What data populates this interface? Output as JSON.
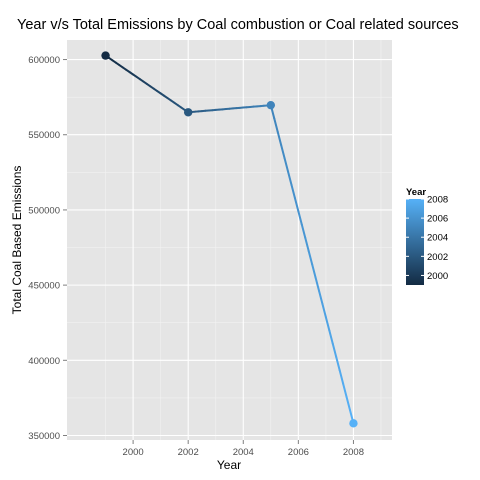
{
  "chart_data": {
    "type": "line",
    "title": "Year v/s Total Emissions by Coal combustion or Coal related sources",
    "xlabel": "Year",
    "ylabel": "Total Coal Based Emissions",
    "x": [
      1999,
      2002,
      2005,
      2008
    ],
    "y": [
      602624,
      564936,
      569655,
      358083
    ],
    "xlim": [
      1997.6,
      2009.4
    ],
    "ylim": [
      347000,
      613000
    ],
    "xticks": [
      2000,
      2002,
      2004,
      2006,
      2008
    ],
    "yticks": [
      350000,
      400000,
      450000,
      500000,
      550000,
      600000
    ],
    "grid": true,
    "color_scale": {
      "low": "#132b43",
      "high": "#56b1f7",
      "domain": [
        1999,
        2008
      ]
    },
    "legend": {
      "title": "Year",
      "position": "right",
      "labels": [
        "2008",
        "2006",
        "2004",
        "2002",
        "2000"
      ],
      "values": [
        2008,
        2006,
        2004,
        2002,
        2000
      ]
    }
  }
}
